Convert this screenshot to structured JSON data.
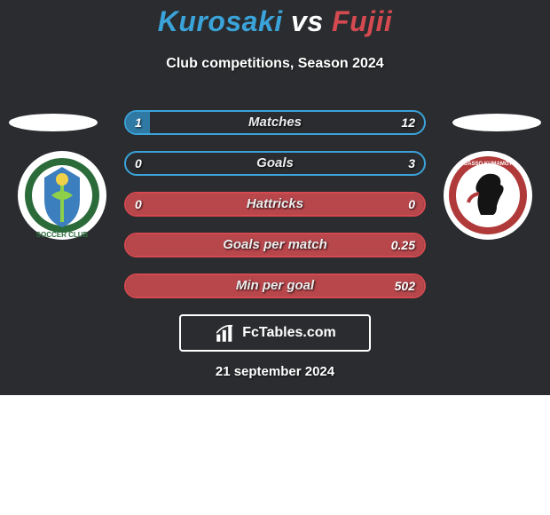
{
  "header": {
    "player1": "Kurosaki",
    "vs": "vs",
    "player2": "Fujii",
    "player1_color": "#3aa3d9",
    "vs_color": "#ffffff",
    "player2_color": "#d44a50",
    "subtitle": "Club competitions, Season 2024"
  },
  "colors": {
    "bg_dark": "#2a2c2f",
    "stat_border_p1": "#3aa3d9",
    "stat_fill_p1": "#2f7aa5",
    "stat_border_tie": "#d44a50",
    "stat_fill_tie": "#b8474c",
    "badge_ring_left": "#2b6b3a",
    "badge_inner_left": "#3b7fbf",
    "badge_ring_right": "#b03a3a",
    "badge_inner_right": "#141414"
  },
  "stats": [
    {
      "label": "Matches",
      "v1": "1",
      "v2": "12",
      "fill_pct": 8,
      "side": "p1"
    },
    {
      "label": "Goals",
      "v1": "0",
      "v2": "3",
      "fill_pct": 0,
      "side": "p1"
    },
    {
      "label": "Hattricks",
      "v1": "0",
      "v2": "0",
      "fill_pct": 100,
      "side": "tie"
    },
    {
      "label": "Goals per match",
      "v1": "",
      "v2": "0.25",
      "fill_pct": 100,
      "side": "tie"
    },
    {
      "label": "Min per goal",
      "v1": "",
      "v2": "502",
      "fill_pct": 100,
      "side": "tie"
    }
  ],
  "footer": {
    "site_label": "FcTables.com",
    "date": "21 september 2024"
  },
  "badges": {
    "left_text": "SC",
    "right_text": ""
  }
}
